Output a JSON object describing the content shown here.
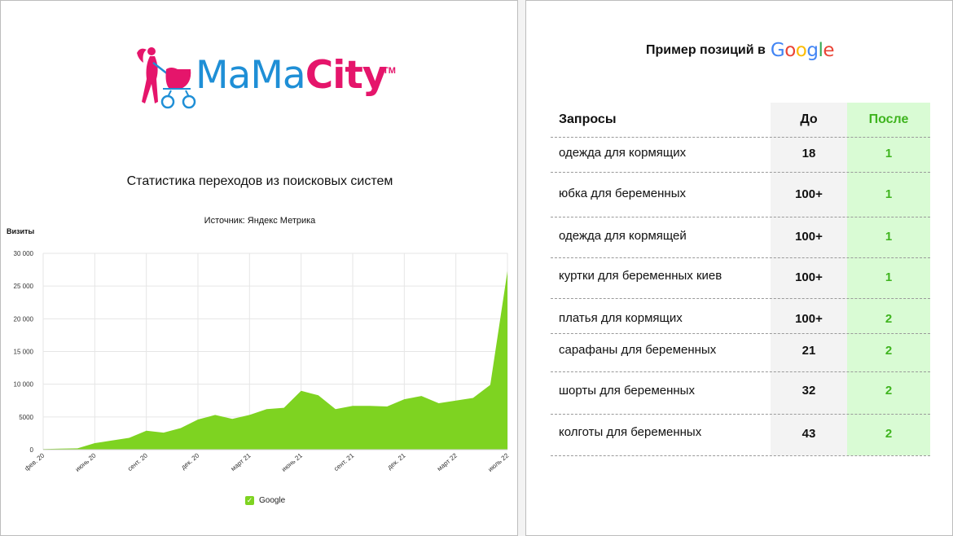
{
  "logo": {
    "text_ma": "MaMa",
    "text_city": "City",
    "tm": "TM"
  },
  "left": {
    "title": "Статистика переходов из поисковых систем",
    "subtitle": "Источник: Яндекс Метрика",
    "ylabel": "Визиты",
    "legend": "Google"
  },
  "colors": {
    "series": "#7ed321",
    "accent_green": "#3fb41f",
    "brand_pink": "#e5156b",
    "brand_blue": "#1f8fd6"
  },
  "chart_data": {
    "type": "area",
    "title": "Статистика переходов из поисковых систем",
    "subtitle": "Источник: Яндекс Метрика",
    "ylabel": "Визиты",
    "xlabel": "",
    "ylim": [
      0,
      30000
    ],
    "yticks": [
      0,
      5000,
      10000,
      15000,
      20000,
      25000,
      30000
    ],
    "ytick_labels": [
      "0",
      "5000",
      "10 000",
      "15 000",
      "20 000",
      "25 000",
      "30 000"
    ],
    "xtick_labels": [
      "фев. 20",
      "июнь 20",
      "сент. 20",
      "дек. 20",
      "март 21",
      "июнь 21",
      "сент. 21",
      "дек. 21",
      "март 22",
      "июль 22"
    ],
    "grid": true,
    "legend_position": "bottom",
    "series": [
      {
        "name": "Google",
        "values": [
          100,
          150,
          200,
          1000,
          1400,
          1800,
          2900,
          2600,
          3300,
          4600,
          5300,
          4700,
          5300,
          6200,
          6400,
          9000,
          8300,
          6200,
          6700,
          6700,
          6600,
          7700,
          8200,
          7100,
          7500,
          7900,
          9900,
          27300
        ]
      }
    ]
  },
  "right": {
    "title_prefix": "Пример позиций в",
    "google": [
      "G",
      "o",
      "o",
      "g",
      "l",
      "e"
    ],
    "headers": {
      "query": "Запросы",
      "before": "До",
      "after": "После"
    },
    "rows": [
      {
        "query": "одежда для кормящих",
        "before": "18",
        "after": "1"
      },
      {
        "query": "юбка для беременных",
        "before": "100+",
        "after": "1"
      },
      {
        "query": "одежда для кормящей",
        "before": "100+",
        "after": "1"
      },
      {
        "query": "куртки для беременных киев",
        "before": "100+",
        "after": "1"
      },
      {
        "query": "платья для кормящих",
        "before": "100+",
        "after": "2"
      },
      {
        "query": "сарафаны для беременных",
        "before": "21",
        "after": "2"
      },
      {
        "query": "шорты для беременных",
        "before": "32",
        "after": "2"
      },
      {
        "query": "колготы для беременных",
        "before": "43",
        "after": "2"
      }
    ]
  }
}
